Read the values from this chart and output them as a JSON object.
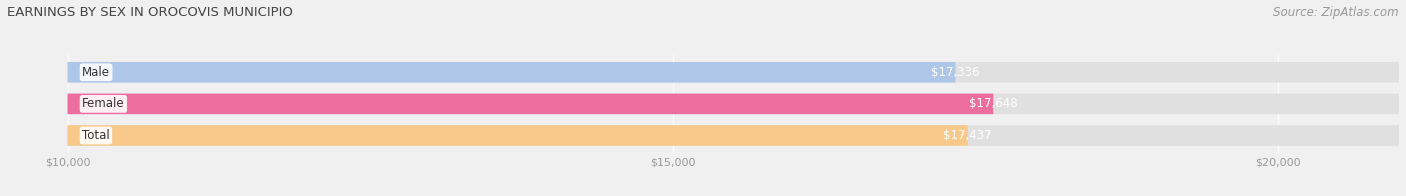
{
  "title": "EARNINGS BY SEX IN OROCOVIS MUNICIPIO",
  "source": "Source: ZipAtlas.com",
  "categories": [
    "Male",
    "Female",
    "Total"
  ],
  "values": [
    17336,
    17648,
    17437
  ],
  "bar_colors": [
    "#aec6e8",
    "#ee6d9f",
    "#f8c98a"
  ],
  "bar_labels": [
    "$17,336",
    "$17,648",
    "$17,437"
  ],
  "xlim": [
    9500,
    21000
  ],
  "xmin": 10000,
  "xticks": [
    10000,
    15000,
    20000
  ],
  "xtick_labels": [
    "$10,000",
    "$15,000",
    "$20,000"
  ],
  "bg_color": "#f0f0f0",
  "bar_bg_color": "#e0e0e0",
  "title_fontsize": 9.5,
  "source_fontsize": 8.5,
  "tick_fontsize": 8,
  "label_fontsize": 8.5,
  "cat_fontsize": 8.5,
  "bar_height": 0.65
}
